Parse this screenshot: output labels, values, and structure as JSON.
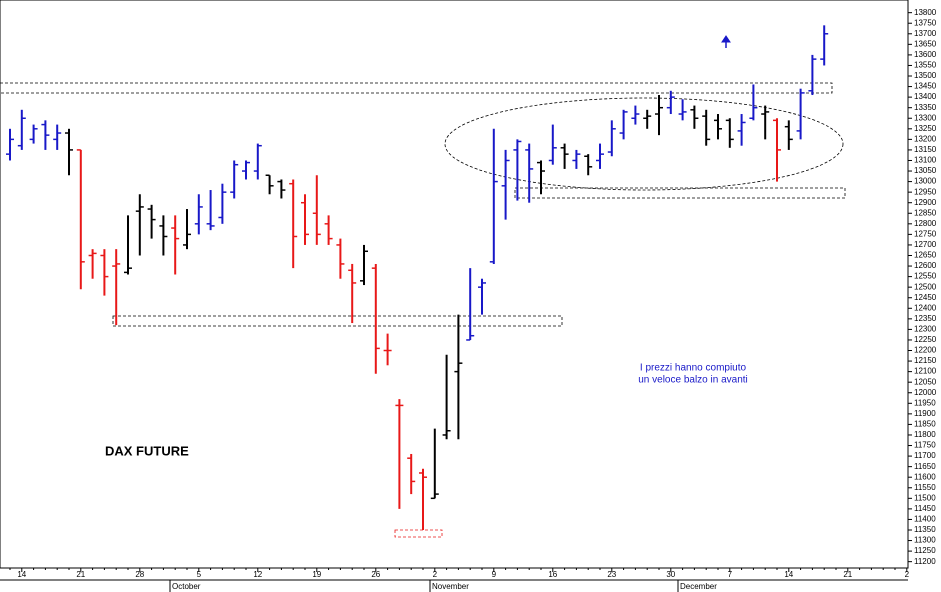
{
  "chart_data": {
    "type": "ohlc",
    "categories": [
      null,
      "14",
      null,
      null,
      null,
      null,
      "21",
      null,
      null,
      null,
      null,
      "28",
      null,
      null,
      null,
      null,
      "5",
      null,
      null,
      null,
      null,
      "12",
      null,
      null,
      null,
      null,
      "19",
      null,
      null,
      null,
      null,
      "26",
      null,
      null,
      null,
      null,
      "2",
      null,
      null,
      null,
      null,
      "9",
      null,
      null,
      null,
      null,
      "16",
      null,
      null,
      null,
      null,
      "23",
      null,
      null,
      null,
      null,
      "30",
      null,
      null,
      null,
      null,
      "7",
      null,
      null,
      null,
      null,
      "14",
      null,
      null,
      null,
      null,
      "21",
      null,
      null,
      null,
      null,
      "2"
    ],
    "month_labels": [
      "October",
      "November",
      "December"
    ],
    "open": [
      13130,
      13170,
      13200,
      13270,
      13200,
      13230,
      13150,
      12650,
      12650,
      12600,
      12570,
      12860,
      12870,
      12790,
      12780,
      12700,
      12800,
      12800,
      12830,
      12950,
      13050,
      13050,
      13030,
      13000,
      12990,
      12900,
      12850,
      12800,
      12700,
      12580,
      12530,
      12590,
      12200,
      11940,
      11690,
      11620,
      11500,
      11800,
      12100,
      12250,
      12500,
      12620,
      12980,
      13150,
      13150,
      13090,
      13100,
      13160,
      13100,
      13120,
      13100,
      13140,
      13230,
      13300,
      13300,
      13320,
      13350,
      13320,
      13340,
      13310,
      13290,
      13290,
      13240,
      13300,
      13320,
      13290,
      13260,
      13240,
      13430,
      13580,
      null,
      null,
      null,
      null,
      null,
      null,
      null
    ],
    "high": [
      13250,
      13340,
      13270,
      13290,
      13270,
      13250,
      13150,
      12680,
      12680,
      12680,
      12840,
      12940,
      12890,
      12840,
      12840,
      12870,
      12940,
      12960,
      12990,
      13100,
      13100,
      13180,
      13030,
      13010,
      13010,
      12940,
      13030,
      12840,
      12730,
      12610,
      12700,
      12610,
      12280,
      11970,
      11710,
      11640,
      11830,
      12180,
      12370,
      12590,
      12540,
      13250,
      13150,
      13200,
      13180,
      13100,
      13270,
      13180,
      13150,
      13130,
      13180,
      13290,
      13340,
      13360,
      13340,
      13410,
      13430,
      13390,
      13360,
      13340,
      13320,
      13300,
      13320,
      13460,
      13360,
      13300,
      13290,
      13440,
      13600,
      13740,
      null,
      null,
      null,
      null,
      null,
      null,
      null
    ],
    "low": [
      13100,
      13150,
      13180,
      13150,
      13150,
      13030,
      12490,
      12540,
      12460,
      12320,
      12560,
      12650,
      12730,
      12650,
      12560,
      12680,
      12750,
      12770,
      12800,
      12920,
      13010,
      13010,
      12940,
      12920,
      12590,
      12700,
      12700,
      12700,
      12540,
      12330,
      12510,
      12090,
      12130,
      11450,
      11520,
      11350,
      11500,
      11780,
      11780,
      12250,
      12370,
      12610,
      12820,
      12910,
      12900,
      12940,
      13080,
      13060,
      13060,
      13030,
      13060,
      13120,
      13200,
      13270,
      13250,
      13220,
      13320,
      13290,
      13250,
      13170,
      13200,
      13160,
      13170,
      13290,
      13200,
      13000,
      13150,
      13200,
      13410,
      13550,
      null,
      null,
      null,
      null,
      null,
      null,
      null
    ],
    "close": [
      13200,
      13300,
      13250,
      13220,
      13230,
      13150,
      12620,
      12660,
      12550,
      12610,
      12590,
      12880,
      12820,
      12740,
      12730,
      12750,
      12880,
      12790,
      12950,
      13080,
      13090,
      13170,
      12980,
      12960,
      12740,
      12750,
      12750,
      12730,
      12610,
      12520,
      12670,
      12210,
      12200,
      11940,
      11580,
      11600,
      11520,
      11820,
      12140,
      12270,
      12520,
      13000,
      13100,
      13190,
      13060,
      13050,
      13160,
      13130,
      13130,
      13070,
      13130,
      13250,
      13330,
      13320,
      13310,
      13350,
      13400,
      13330,
      13300,
      13200,
      13250,
      13200,
      13280,
      13350,
      13330,
      13150,
      13200,
      13420,
      13580,
      13700,
      null,
      null,
      null,
      null,
      null,
      null,
      null
    ],
    "bar_kind": [
      "up",
      "up",
      "up",
      "up",
      "up",
      "neutral",
      "down",
      "down",
      "down",
      "down",
      "neutral",
      "neutral",
      "neutral",
      "neutral",
      "down",
      "neutral",
      "up",
      "up",
      "up",
      "up",
      "up",
      "up",
      "neutral",
      "neutral",
      "down",
      "down",
      "down",
      "down",
      "down",
      "down",
      "neutral",
      "down",
      "down",
      "down",
      "down",
      "down",
      "neutral",
      "neutral",
      "neutral",
      "up",
      "up",
      "up",
      "up",
      "up",
      "up",
      "neutral",
      "up",
      "neutral",
      "up",
      "neutral",
      "up",
      "up",
      "up",
      "up",
      "neutral",
      "neutral",
      "up",
      "up",
      "neutral",
      "neutral",
      "neutral",
      "neutral",
      "up",
      "up",
      "neutral",
      "down",
      "neutral",
      "up",
      "up",
      "up",
      null,
      null,
      null,
      null,
      null,
      null,
      null
    ],
    "colors": {
      "up": "#1818c8",
      "down": "#e81818",
      "neutral": "#000000"
    },
    "ylim": [
      11170,
      13860
    ],
    "yticks": [
      11200,
      11250,
      11300,
      11350,
      11400,
      11450,
      11500,
      11550,
      11600,
      11650,
      11700,
      11750,
      11800,
      11850,
      11900,
      11950,
      12000,
      12050,
      12100,
      12150,
      12200,
      12250,
      12300,
      12350,
      12400,
      12450,
      12500,
      12550,
      12600,
      12650,
      12700,
      12750,
      12800,
      12850,
      12900,
      12950,
      13000,
      13050,
      13100,
      13150,
      13200,
      13250,
      13300,
      13350,
      13400,
      13450,
      13500,
      13550,
      13600,
      13650,
      13700,
      13750,
      13800
    ],
    "annotations": [
      "DAX FUTURE",
      "I prezzi hanno compiuto",
      "un veloce balzo in avanti"
    ]
  }
}
